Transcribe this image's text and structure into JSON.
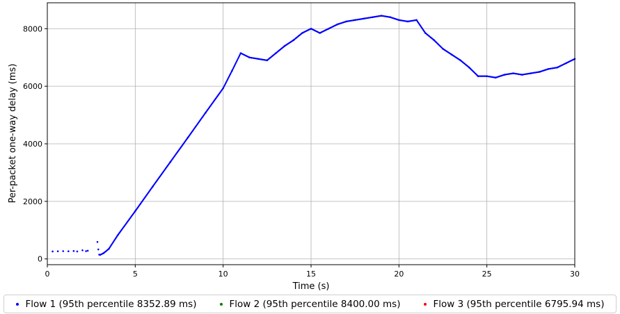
{
  "chart_data": {
    "type": "scatter",
    "title": "",
    "xlabel": "Time (s)",
    "ylabel": "Per-packet one-way delay (ms)",
    "xlim": [
      0,
      30
    ],
    "ylim": [
      -200,
      8900
    ],
    "xticks": [
      0,
      5,
      10,
      15,
      20,
      25,
      30
    ],
    "yticks": [
      0,
      2000,
      4000,
      6000,
      8000
    ],
    "grid": true,
    "legend_position": "bottom",
    "series": [
      {
        "name": "Flow 1 (95th percentile 8352.89 ms)",
        "color": "#0000ff",
        "points": [
          [
            0.3,
            260
          ],
          [
            0.6,
            265
          ],
          [
            0.9,
            270
          ],
          [
            1.2,
            265
          ],
          [
            1.5,
            275
          ],
          [
            1.7,
            260
          ],
          [
            2.0,
            300
          ],
          [
            2.2,
            270
          ],
          [
            2.3,
            285
          ],
          [
            2.85,
            590
          ],
          [
            2.9,
            330
          ],
          [
            2.95,
            150
          ],
          [
            3.0,
            140
          ],
          [
            3.2,
            200
          ],
          [
            3.5,
            350
          ],
          [
            4.0,
            820
          ],
          [
            5.0,
            1660
          ],
          [
            6.0,
            2520
          ],
          [
            7.0,
            3370
          ],
          [
            8.0,
            4220
          ],
          [
            9.0,
            5080
          ],
          [
            10.0,
            5930
          ],
          [
            10.5,
            6530
          ],
          [
            11.0,
            7150
          ],
          [
            11.5,
            7000
          ],
          [
            12.0,
            6950
          ],
          [
            12.5,
            6900
          ],
          [
            13.0,
            7150
          ],
          [
            13.5,
            7400
          ],
          [
            14.0,
            7600
          ],
          [
            14.5,
            7850
          ],
          [
            15.0,
            8000
          ],
          [
            15.5,
            7850
          ],
          [
            16.0,
            8000
          ],
          [
            16.5,
            8150
          ],
          [
            17.0,
            8250
          ],
          [
            17.5,
            8300
          ],
          [
            18.0,
            8350
          ],
          [
            18.5,
            8400
          ],
          [
            19.0,
            8450
          ],
          [
            19.5,
            8400
          ],
          [
            20.0,
            8300
          ],
          [
            20.5,
            8250
          ],
          [
            21.0,
            8300
          ],
          [
            21.5,
            7850
          ],
          [
            22.0,
            7600
          ],
          [
            22.5,
            7300
          ],
          [
            23.0,
            7100
          ],
          [
            23.5,
            6900
          ],
          [
            24.0,
            6650
          ],
          [
            24.5,
            6350
          ],
          [
            25.0,
            6350
          ],
          [
            25.5,
            6300
          ],
          [
            26.0,
            6400
          ],
          [
            26.5,
            6450
          ],
          [
            27.0,
            6400
          ],
          [
            27.5,
            6450
          ],
          [
            28.0,
            6500
          ],
          [
            28.5,
            6600
          ],
          [
            29.0,
            6650
          ],
          [
            29.5,
            6800
          ],
          [
            30.0,
            6950
          ]
        ]
      },
      {
        "name": "Flow 2 (95th percentile 8400.00 ms)",
        "color": "#008000",
        "points": []
      },
      {
        "name": "Flow 3 (95th percentile 6795.94 ms)",
        "color": "#ff0000",
        "points": []
      }
    ]
  }
}
